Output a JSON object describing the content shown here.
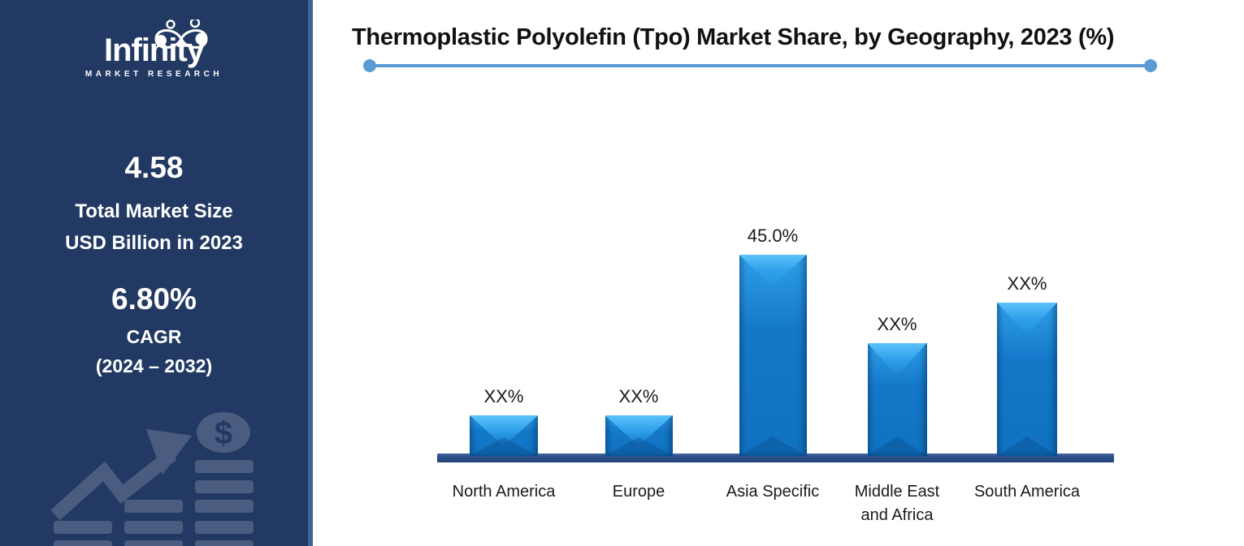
{
  "sidebar": {
    "brand": {
      "name": "Infinity",
      "tagline": "MARKET RESEARCH"
    },
    "stat_market_size": {
      "value": "4.58",
      "line1": "Total Market Size",
      "line2": "USD Billion in 2023"
    },
    "stat_cagr": {
      "value": "6.80%",
      "line1": "CAGR",
      "line2": "(2024 – 2032)"
    },
    "watermark_icon": "growth-arrow-dollar-chart-icon",
    "colors": {
      "background": "#223A63",
      "divider": "#3F6695",
      "watermark": "#4A5C80"
    }
  },
  "header": {
    "title": "Thermoplastic Polyolefin (Tpo) Market Share, by Geography, 2023 (%)",
    "underline_color": "#5B9BD5"
  },
  "chart_data": {
    "type": "bar",
    "title": "Thermoplastic Polyolefin (Tpo) Market Share, by Geography, 2023 (%)",
    "categories": [
      "North America",
      "Europe",
      "Asia Specific",
      "Middle East and Africa",
      "South America"
    ],
    "category_lines": [
      [
        "North America"
      ],
      [
        "Europe"
      ],
      [
        "Asia Specific"
      ],
      [
        "Middle East",
        "and Africa"
      ],
      [
        "South America"
      ]
    ],
    "data_labels": [
      "XX%",
      "XX%",
      "45.0%",
      "XX%",
      "XX%"
    ],
    "values_pct_estimated": [
      9,
      9.1,
      45.0,
      25.2,
      34.3
    ],
    "labeled_values": [
      {
        "category": "Asia Specific",
        "value": 45.0
      }
    ],
    "ylim": [
      0,
      50
    ],
    "xlabel": "",
    "ylabel": "",
    "legend": "none",
    "gridlines": false,
    "bar_color": "#1176C6",
    "bar_highlight_color": "#5BC2FA",
    "axis_color": "#2B4D88",
    "label_color": "#1A1A1A"
  }
}
